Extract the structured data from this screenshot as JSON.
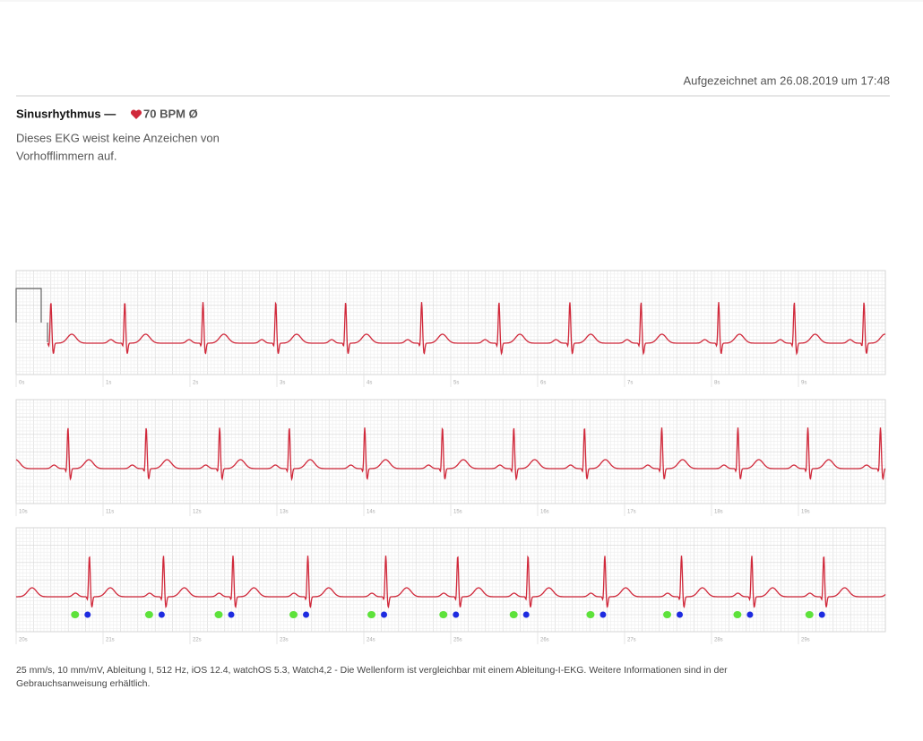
{
  "header": {
    "recorded": "Aufgezeichnet am 26.08.2019 um 17:48"
  },
  "summary": {
    "title": "Sinusrhythmus —",
    "bpm": "70 BPM Ø",
    "description": [
      "Dieses EKG weist keine Anzeichen von",
      "Vorhofflimmern auf."
    ]
  },
  "strips": [
    {
      "time_labels": [
        "0s",
        "1s",
        "2s",
        "3s",
        "4s",
        "5s",
        "6s",
        "7s",
        "8s",
        "9s"
      ]
    },
    {
      "time_labels": [
        "10s",
        "11s",
        "12s",
        "13s",
        "14s",
        "15s",
        "16s",
        "17s",
        "18s",
        "19s"
      ]
    },
    {
      "time_labels": [
        "20s",
        "21s",
        "22s",
        "23s",
        "24s",
        "25s",
        "26s",
        "27s",
        "28s",
        "29s"
      ]
    }
  ],
  "footer": {
    "lines": [
      "25 mm/s, 10 mm/mV, Ableitung I, 512 Hz, iOS 12.4, watchOS 5.3, Watch4,2 - Die Wellenform ist vergleichbar mit einem Ableitung-I-EKG. Weitere Informationen sind in der",
      "Gebrauchsanweisung erhältlich."
    ]
  }
}
